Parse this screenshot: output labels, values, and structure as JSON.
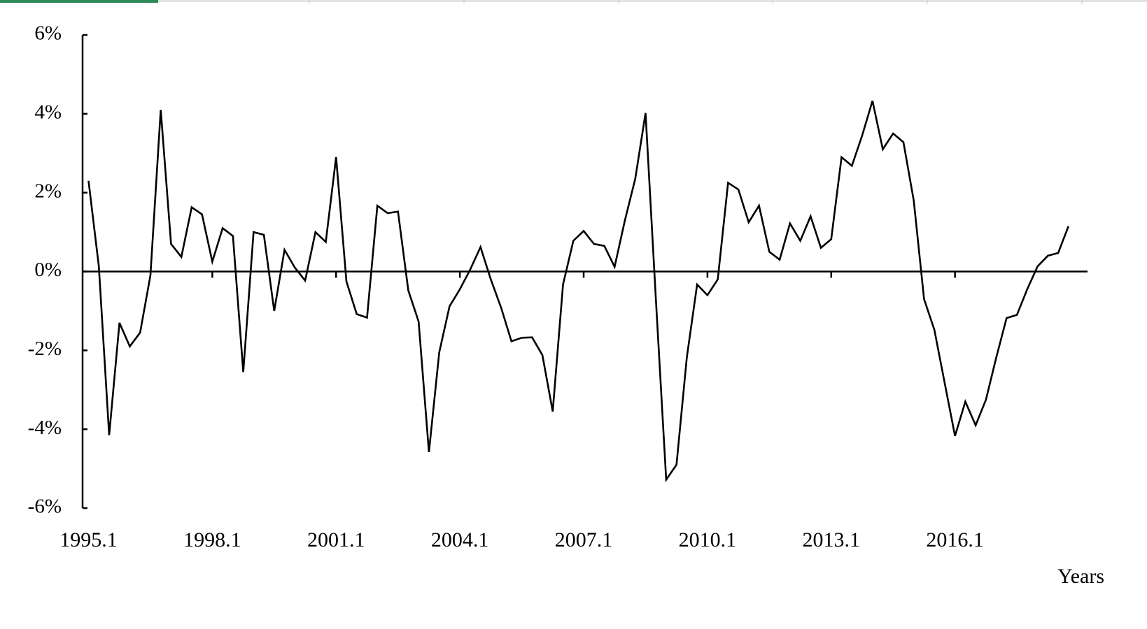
{
  "chart_data": {
    "type": "line",
    "x_label": "Years",
    "color": "#000000",
    "categories": [
      "1995.1",
      null,
      null,
      null,
      null,
      null,
      null,
      null,
      null,
      null,
      null,
      null,
      "1998.1",
      null,
      null,
      null,
      null,
      null,
      null,
      null,
      null,
      null,
      null,
      null,
      "2001.1",
      null,
      null,
      null,
      null,
      null,
      null,
      null,
      null,
      null,
      null,
      null,
      "2004.1",
      null,
      null,
      null,
      null,
      null,
      null,
      null,
      null,
      null,
      null,
      null,
      "2007.1",
      null,
      null,
      null,
      null,
      null,
      null,
      null,
      null,
      null,
      null,
      null,
      "2010.1",
      null,
      null,
      null,
      null,
      null,
      null,
      null,
      null,
      null,
      null,
      null,
      "2013.1",
      null,
      null,
      null,
      null,
      null,
      null,
      null,
      null,
      null,
      null,
      null,
      "2016.1",
      null,
      null,
      null,
      null,
      null,
      null,
      null,
      null,
      null,
      null,
      null
    ],
    "values": [
      2.3,
      0.13,
      -4.15,
      -1.3,
      -1.9,
      -1.55,
      -0.1,
      4.1,
      0.7,
      0.37,
      1.63,
      1.45,
      0.25,
      1.1,
      0.9,
      -2.55,
      1.0,
      0.93,
      -1.0,
      0.55,
      0.1,
      -0.23,
      1.0,
      0.75,
      2.9,
      -0.25,
      -1.08,
      -1.17,
      1.67,
      1.48,
      1.52,
      -0.48,
      -1.27,
      -4.58,
      -2.05,
      -0.88,
      -0.45,
      0.05,
      0.62,
      -0.2,
      -0.92,
      -1.77,
      -1.68,
      -1.67,
      -2.12,
      -3.55,
      -0.33,
      0.78,
      1.03,
      0.7,
      0.65,
      0.12,
      1.3,
      2.35,
      4.02,
      -0.7,
      -5.28,
      -4.9,
      -2.18,
      -0.33,
      -0.6,
      -0.2,
      2.25,
      2.08,
      1.25,
      1.67,
      0.5,
      0.3,
      1.22,
      0.78,
      1.4,
      0.6,
      0.82,
      2.9,
      2.68,
      3.45,
      4.33,
      3.1,
      3.5,
      3.28,
      1.8,
      -0.7,
      -1.48,
      -2.83,
      -4.17,
      -3.3,
      -3.9,
      -3.25,
      -2.18,
      -1.18,
      -1.1,
      -0.45,
      0.13,
      0.4,
      0.47,
      1.15
    ],
    "ylim": [
      -6,
      6
    ],
    "yticks": [
      {
        "value": -6,
        "label": "-6%"
      },
      {
        "value": -4,
        "label": "-4%"
      },
      {
        "value": -2,
        "label": "-2%"
      },
      {
        "value": 0,
        "label": "0%"
      },
      {
        "value": 2,
        "label": "2%"
      },
      {
        "value": 4,
        "label": "4%"
      },
      {
        "value": 6,
        "label": "6%"
      }
    ],
    "grid": false
  }
}
